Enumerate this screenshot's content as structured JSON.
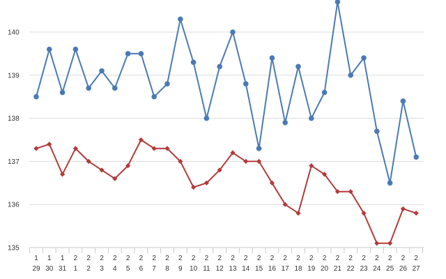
{
  "chart_data": {
    "type": "line",
    "title": "",
    "xlabel": "",
    "ylabel": "",
    "ylim": [
      135,
      140.8
    ],
    "yticks": [
      "135",
      "136",
      "137",
      "138",
      "139",
      "140"
    ],
    "grid": true,
    "legend": "none",
    "categories": [
      [
        "1",
        "29"
      ],
      [
        "1",
        "30"
      ],
      [
        "1",
        "31"
      ],
      [
        "2",
        "1"
      ],
      [
        "2",
        "2"
      ],
      [
        "2",
        "3"
      ],
      [
        "2",
        "4"
      ],
      [
        "2",
        "5"
      ],
      [
        "2",
        "6"
      ],
      [
        "2",
        "7"
      ],
      [
        "2",
        "8"
      ],
      [
        "2",
        "9"
      ],
      [
        "2",
        "10"
      ],
      [
        "2",
        "11"
      ],
      [
        "2",
        "12"
      ],
      [
        "2",
        "13"
      ],
      [
        "2",
        "14"
      ],
      [
        "2",
        "15"
      ],
      [
        "2",
        "16"
      ],
      [
        "2",
        "17"
      ],
      [
        "2",
        "18"
      ],
      [
        "2",
        "19"
      ],
      [
        "2",
        "20"
      ],
      [
        "2",
        "21"
      ],
      [
        "2",
        "22"
      ],
      [
        "2",
        "23"
      ],
      [
        "2",
        "24"
      ],
      [
        "2",
        "25"
      ],
      [
        "2",
        "26"
      ],
      [
        "2",
        "27"
      ]
    ],
    "series": [
      {
        "color": "#4a7ab5",
        "marker": "circle",
        "values": [
          138.5,
          139.6,
          138.6,
          139.6,
          138.7,
          139.1,
          138.7,
          139.5,
          139.5,
          138.5,
          138.8,
          140.3,
          139.3,
          138.0,
          139.2,
          140.0,
          138.8,
          137.3,
          139.4,
          137.9,
          139.2,
          138.0,
          138.6,
          140.7,
          139.0,
          139.4,
          137.7,
          136.5,
          138.4,
          137.1
        ]
      },
      {
        "color": "#b23b3b",
        "marker": "diamond",
        "values": [
          137.3,
          137.4,
          136.7,
          137.3,
          137.0,
          136.8,
          136.6,
          136.9,
          137.5,
          137.3,
          137.3,
          137.0,
          136.4,
          136.5,
          136.8,
          137.2,
          137.0,
          137.0,
          136.5,
          136.0,
          135.8,
          136.9,
          136.7,
          136.3,
          136.3,
          135.8,
          135.1,
          135.1,
          135.9,
          135.8
        ]
      }
    ]
  }
}
